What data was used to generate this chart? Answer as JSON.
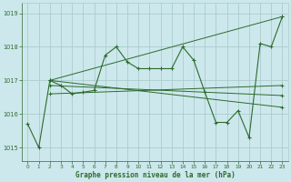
{
  "title": "Graphe pression niveau de la mer (hPa)",
  "background_color": "#cce8ec",
  "grid_color": "#aacccc",
  "line_color": "#2d6a2d",
  "xlim": [
    -0.5,
    23.5
  ],
  "ylim": [
    1014.6,
    1019.3
  ],
  "yticks": [
    1015,
    1016,
    1017,
    1018,
    1019
  ],
  "xticks": [
    0,
    1,
    2,
    3,
    4,
    5,
    6,
    7,
    8,
    9,
    10,
    11,
    12,
    13,
    14,
    15,
    16,
    17,
    18,
    19,
    20,
    21,
    22,
    23
  ],
  "main_x": [
    0,
    1,
    2,
    3,
    4,
    5,
    6,
    7,
    8,
    9,
    10,
    11,
    12,
    13,
    14,
    15,
    16,
    17,
    18,
    19,
    20,
    21,
    22,
    23
  ],
  "main_y": [
    1015.7,
    1015.0,
    1017.0,
    1016.85,
    1016.6,
    1016.65,
    1016.7,
    1017.75,
    1018.0,
    1017.55,
    1017.35,
    1017.35,
    1017.35,
    1017.35,
    1018.0,
    1017.6,
    1016.65,
    1015.75,
    1015.75,
    1016.1,
    1015.3,
    1018.1,
    1018.0,
    1018.9
  ],
  "diag_lines": [
    {
      "x": [
        2,
        23
      ],
      "y": [
        1017.0,
        1018.9
      ]
    },
    {
      "x": [
        2,
        23
      ],
      "y": [
        1017.0,
        1016.2
      ]
    },
    {
      "x": [
        2,
        23
      ],
      "y": [
        1016.85,
        1016.55
      ]
    },
    {
      "x": [
        2,
        23
      ],
      "y": [
        1016.6,
        1016.85
      ]
    }
  ]
}
